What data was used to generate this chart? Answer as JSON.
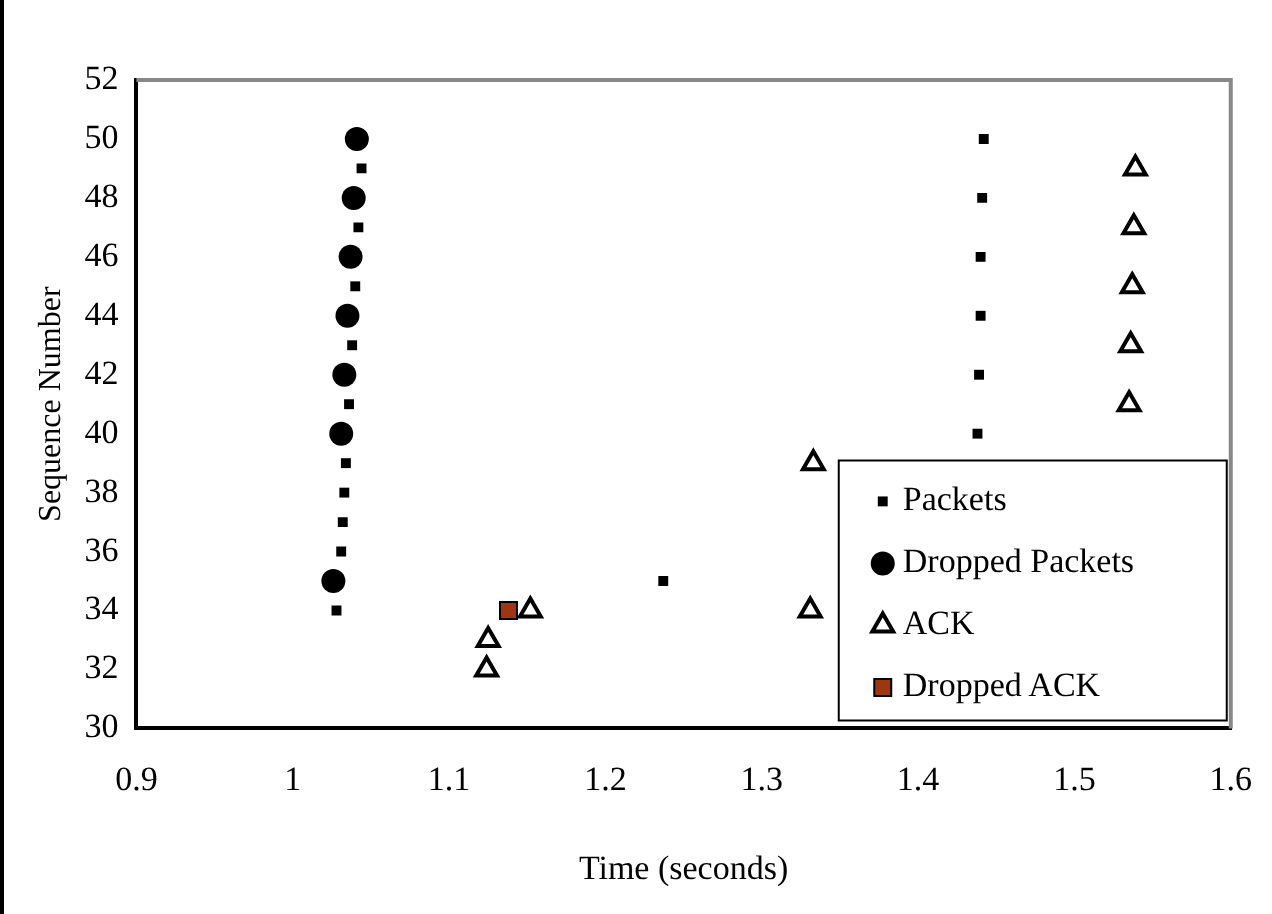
{
  "chart_data": {
    "type": "scatter",
    "xlabel": "Time (seconds)",
    "ylabel": "Sequence Number",
    "xlim": [
      0.9,
      1.6
    ],
    "xticks": [
      0.9,
      1,
      1.1,
      1.2,
      1.3,
      1.4,
      1.5,
      1.6
    ],
    "ylim": [
      30,
      52
    ],
    "yticks": [
      30,
      32,
      34,
      36,
      38,
      40,
      42,
      44,
      46,
      48,
      50,
      52
    ],
    "grid": false,
    "legend": "bottom right",
    "series": [
      {
        "name": "Packets",
        "color": "#000000",
        "marker": "square",
        "x": [
          1.028,
          1.031,
          1.032,
          1.033,
          1.034,
          1.036,
          1.038,
          1.04,
          1.042,
          1.044,
          1.237,
          1.438,
          1.439,
          1.44,
          1.44,
          1.441,
          1.442
        ],
        "values": [
          34,
          36,
          37,
          38,
          39,
          41,
          43,
          45,
          47,
          49,
          35,
          40,
          42,
          44,
          46,
          48,
          50
        ]
      },
      {
        "name": "Dropped Packets",
        "color": "#000000",
        "marker": "circle",
        "x": [
          1.026,
          1.031,
          1.033,
          1.035,
          1.037,
          1.039,
          1.041
        ],
        "values": [
          35,
          40,
          42,
          44,
          46,
          48,
          50
        ]
      },
      {
        "name": "ACK",
        "color": "#000000",
        "marker": "triangle",
        "x": [
          1.124,
          1.125,
          1.152,
          1.331,
          1.333,
          1.535,
          1.536,
          1.537,
          1.538,
          1.539
        ],
        "values": [
          32,
          33,
          34,
          34,
          39,
          41,
          43,
          45,
          47,
          49
        ]
      },
      {
        "name": "Dropped ACK",
        "color": "#a0360f",
        "marker": "square",
        "x": [
          1.138
        ],
        "values": [
          34
        ]
      }
    ]
  }
}
